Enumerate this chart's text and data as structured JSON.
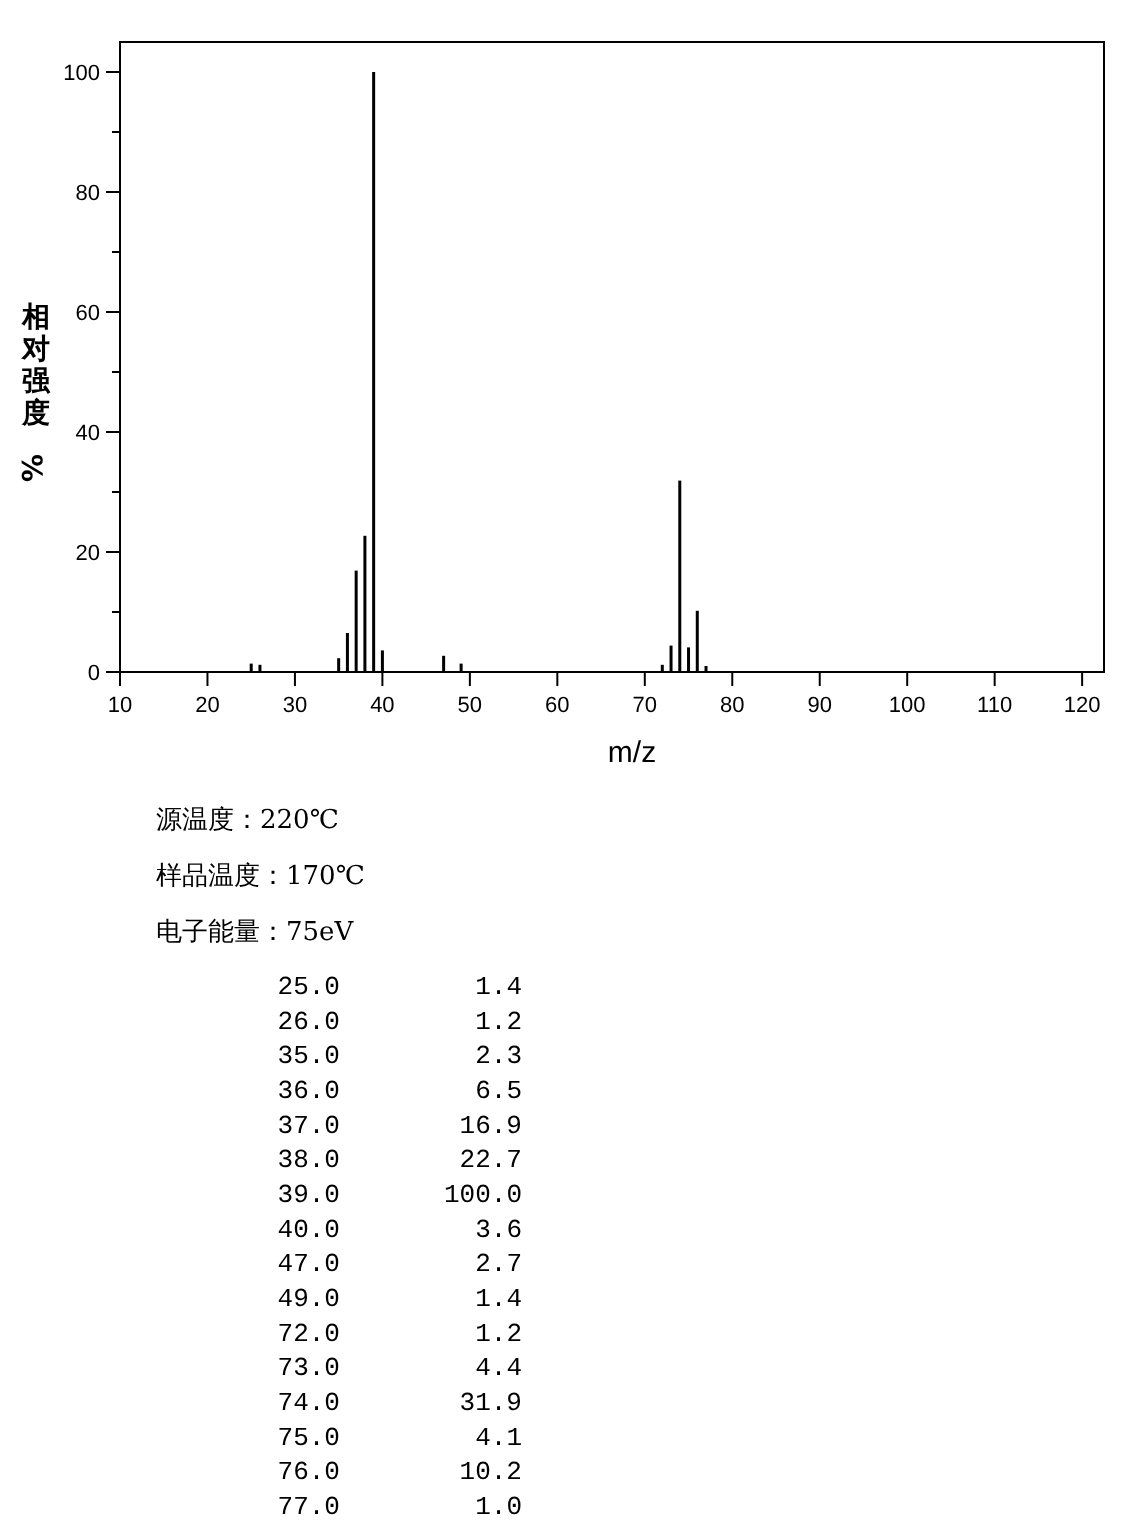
{
  "chart_data": {
    "type": "bar",
    "xlabel": "m/z",
    "ylabel": "相对强度%",
    "x": [
      25,
      26,
      35,
      36,
      37,
      38,
      39,
      40,
      47,
      49,
      72,
      73,
      74,
      75,
      76,
      77
    ],
    "values": [
      1.4,
      1.2,
      2.3,
      6.5,
      16.9,
      22.7,
      100.0,
      3.6,
      2.7,
      1.4,
      1.2,
      4.4,
      31.9,
      4.1,
      10.2,
      1.0
    ],
    "color": "#000000",
    "xlim": [
      10,
      122.5
    ],
    "ylim": [
      0,
      105
    ],
    "xticks": [
      10,
      20,
      30,
      40,
      50,
      60,
      70,
      80,
      90,
      100,
      110,
      120
    ],
    "yticks": [
      0,
      {
        "value": 10,
        "label": null
      },
      20,
      {
        "value": 30,
        "label": null
      },
      40,
      {
        "value": 50,
        "label": null
      },
      60,
      {
        "value": 70,
        "label": null
      },
      80,
      {
        "value": 90,
        "label": null
      },
      100
    ],
    "annotations": [
      "源温度：220℃",
      "样品温度：170℃",
      "电子能量：75eV",
      "25.0",
      "1.4",
      "26.0",
      "1.2",
      "35.0",
      "2.3",
      "36.0",
      "6.5",
      "37.0",
      "16.9",
      "38.0",
      "22.7",
      "39.0",
      "100.0",
      "40.0",
      "3.6",
      "47.0",
      "2.7",
      "49.0",
      "1.4",
      "72.0",
      "1.2",
      "73.0",
      "4.4",
      "74.0",
      "31.9",
      "75.0",
      "4.1",
      "76.0",
      "10.2",
      "77.0",
      "1.0"
    ]
  }
}
